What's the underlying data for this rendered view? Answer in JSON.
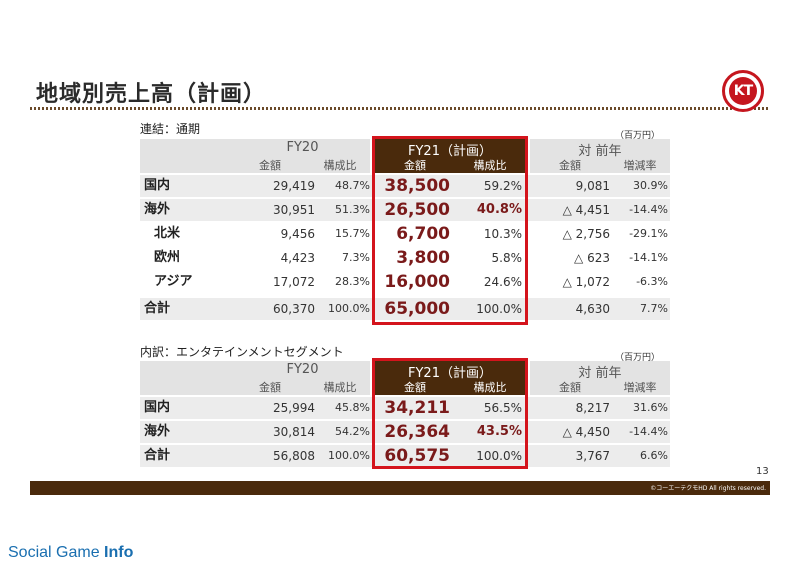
{
  "title": "地域別売上高（計画）",
  "logo_text": "KT",
  "page_number": "13",
  "copyright": "©コーエーテクモHD All rights reserved.",
  "watermark": {
    "part1": "Social Game ",
    "part2": "Info"
  },
  "colors": {
    "brand_brown": "#4a2a0c",
    "highlight_red": "#d4141c",
    "value_red": "#7a1a1a"
  },
  "table1": {
    "caption": "連結：通期",
    "unit": "（百万円）",
    "headers": {
      "fy20": "FY20",
      "fy21": "FY21（計画）",
      "yoy": "対 前年",
      "amount": "金額",
      "ratio": "構成比",
      "change": "増減率"
    },
    "rows": [
      {
        "label": "国内",
        "fy20_amt": "29,419",
        "fy20_pct": "48.7%",
        "fy21_amt": "38,500",
        "fy21_pct": "59.2%",
        "yoy_amt": "9,081",
        "yoy_pct": "30.9%"
      },
      {
        "label": "海外",
        "fy20_amt": "30,951",
        "fy20_pct": "51.3%",
        "fy21_amt": "26,500",
        "fy21_pct": "40.8%",
        "yoy_amt": "△ 4,451",
        "yoy_pct": "-14.4%"
      },
      {
        "label": "北米",
        "fy20_amt": "9,456",
        "fy20_pct": "15.7%",
        "fy21_amt": "6,700",
        "fy21_pct": "10.3%",
        "yoy_amt": "△ 2,756",
        "yoy_pct": "-29.1%"
      },
      {
        "label": "欧州",
        "fy20_amt": "4,423",
        "fy20_pct": "7.3%",
        "fy21_amt": "3,800",
        "fy21_pct": "5.8%",
        "yoy_amt": "△ 623",
        "yoy_pct": "-14.1%"
      },
      {
        "label": "アジア",
        "fy20_amt": "17,072",
        "fy20_pct": "28.3%",
        "fy21_amt": "16,000",
        "fy21_pct": "24.6%",
        "yoy_amt": "△ 1,072",
        "yoy_pct": "-6.3%"
      },
      {
        "label": "合計",
        "fy20_amt": "60,370",
        "fy20_pct": "100.0%",
        "fy21_amt": "65,000",
        "fy21_pct": "100.0%",
        "yoy_amt": "4,630",
        "yoy_pct": "7.7%"
      }
    ]
  },
  "table2": {
    "caption": "内訳：エンタテインメントセグメント",
    "unit": "（百万円）",
    "headers": {
      "fy20": "FY20",
      "fy21": "FY21（計画）",
      "yoy": "対 前年",
      "amount": "金額",
      "ratio": "構成比",
      "change": "増減率"
    },
    "rows": [
      {
        "label": "国内",
        "fy20_amt": "25,994",
        "fy20_pct": "45.8%",
        "fy21_amt": "34,211",
        "fy21_pct": "56.5%",
        "yoy_amt": "8,217",
        "yoy_pct": "31.6%"
      },
      {
        "label": "海外",
        "fy20_amt": "30,814",
        "fy20_pct": "54.2%",
        "fy21_amt": "26,364",
        "fy21_pct": "43.5%",
        "yoy_amt": "△ 4,450",
        "yoy_pct": "-14.4%"
      },
      {
        "label": "合計",
        "fy20_amt": "56,808",
        "fy20_pct": "100.0%",
        "fy21_amt": "60,575",
        "fy21_pct": "100.0%",
        "yoy_amt": "3,767",
        "yoy_pct": "6.6%"
      }
    ]
  }
}
